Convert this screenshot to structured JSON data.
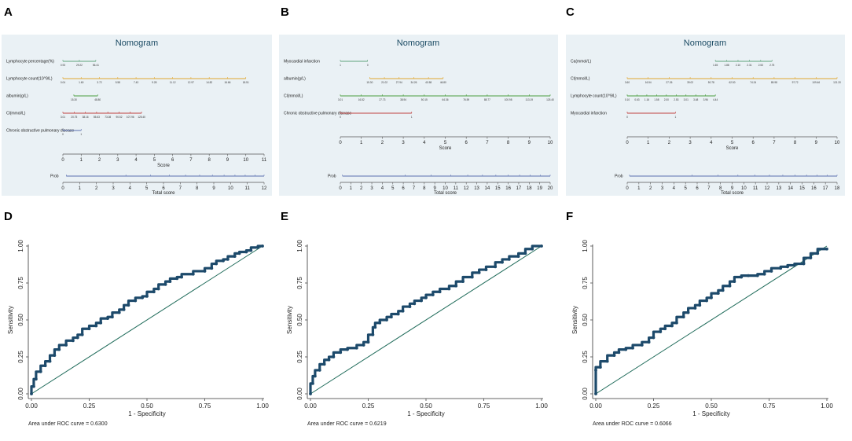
{
  "colors": {
    "nomo_bg": "#eaf1f5",
    "roc_curve": "#1d4a6b",
    "diag": "#1f6b5a",
    "row_colors": [
      "#5fa27a",
      "#e0a62f",
      "#4a9d3f",
      "#c0413f",
      "#5a6fb0"
    ]
  },
  "chart_data": [
    {
      "panel": "A",
      "type": "nomogram",
      "title": "Nomogram",
      "score_axis": {
        "label": "Score",
        "ticks": [
          0,
          1,
          2,
          3,
          4,
          5,
          6,
          7,
          8,
          9,
          10,
          11
        ]
      },
      "total_axis": {
        "label": "Total score",
        "ticks": [
          0,
          1,
          2,
          3,
          4,
          5,
          6,
          7,
          8,
          9,
          10,
          11,
          12
        ]
      },
      "prob_label": "Prob",
      "rows": [
        {
          "label": "Lymphocyte percentage(%)",
          "start": 0,
          "end": 1.8,
          "ticks": [
            "0.93",
            "29.22",
            "56.41"
          ]
        },
        {
          "label": "Lymphocyte count(10^9/L)",
          "start": 0,
          "end": 10,
          "ticks": [
            "0.04",
            "1.60",
            "3.72",
            "5.58",
            "7.43",
            "9.28",
            "11.12",
            "12.97",
            "14.82",
            "16.66",
            "18.51"
          ]
        },
        {
          "label": "albumin(g/L)",
          "start": 0.6,
          "end": 1.9,
          "ticks": [
            "15.30",
            "48.80"
          ]
        },
        {
          "label": "Cl(mmol/L)",
          "start": 0,
          "end": 4.3,
          "ticks": [
            "3.01",
            "20.75",
            "38.16",
            "55.63",
            "73.08",
            "90.52",
            "107.96",
            "125.40"
          ]
        },
        {
          "label": "Chronic obstructive pulmonary disease",
          "start": 0,
          "end": 1,
          "ticks": [
            "0",
            "1"
          ]
        }
      ]
    },
    {
      "panel": "B",
      "type": "nomogram",
      "title": "Nomogram",
      "score_axis": {
        "label": "Score",
        "ticks": [
          0,
          1,
          2,
          3,
          4,
          5,
          6,
          7,
          8,
          9,
          10
        ]
      },
      "total_axis": {
        "label": "Total score",
        "ticks": [
          0,
          1,
          2,
          3,
          4,
          5,
          6,
          7,
          8,
          9,
          10,
          11,
          12,
          13,
          14,
          15,
          16,
          17,
          18,
          19,
          20
        ]
      },
      "prob_label": "Prob",
      "rows": [
        {
          "label": "Myocardial infarction",
          "start": 0,
          "end": 1.3,
          "ticks": [
            "1",
            "0"
          ]
        },
        {
          "label": "albumin(g/L)",
          "start": 1.4,
          "end": 4.9,
          "ticks": [
            "15.30",
            "21.02",
            "27.94",
            "34.26",
            "40.58",
            "46.80"
          ]
        },
        {
          "label": "Cl(mmol/L)",
          "start": 0,
          "end": 10,
          "ticks": [
            "3.01",
            "16.52",
            "27.73",
            "38.94",
            "50.15",
            "64.36",
            "76.59",
            "88.77",
            "100.98",
            "113.19",
            "125.40"
          ]
        },
        {
          "label": "Chronic obstructive pulmonary disease",
          "start": 0,
          "end": 3.4,
          "ticks": [
            "0",
            "1"
          ]
        }
      ]
    },
    {
      "panel": "C",
      "type": "nomogram",
      "title": "Nomogram",
      "score_axis": {
        "label": "Score",
        "ticks": [
          0,
          1,
          2,
          3,
          4,
          5,
          6,
          7,
          8,
          9,
          10
        ]
      },
      "total_axis": {
        "label": "Total score",
        "ticks": [
          0,
          1,
          2,
          3,
          4,
          5,
          6,
          7,
          8,
          9,
          10,
          11,
          12,
          13,
          14,
          15,
          16,
          17,
          18
        ]
      },
      "prob_label": "Prob",
      "rows": [
        {
          "label": "Ca(mmol/L)",
          "start": 4.2,
          "end": 6.9,
          "ticks": [
            "1.65",
            "1.88",
            "2.10",
            "2.31",
            "2.53",
            "2.75"
          ]
        },
        {
          "label": "Cl(mmol/L)",
          "start": 0,
          "end": 10,
          "ticks": [
            "3.60",
            "16.54",
            "27.26",
            "39.02",
            "50.78",
            "62.50",
            "74.24",
            "85.98",
            "97.72",
            "109.46",
            "121.20"
          ]
        },
        {
          "label": "Lymphocyte count(10^9/L)",
          "start": 0,
          "end": 4.2,
          "ticks": [
            "0.10",
            "0.63",
            "1.16",
            "1.58",
            "2.00",
            "2.53",
            "3.01",
            "3.48",
            "3.96",
            "4.44"
          ]
        },
        {
          "label": "Myocardial infarction",
          "start": 0,
          "end": 2.3,
          "ticks": [
            "0",
            "1"
          ]
        }
      ]
    },
    {
      "panel": "D",
      "type": "line",
      "xlabel": "1 - Specificity",
      "ylabel": "Sensitivity",
      "xlim": [
        0,
        1
      ],
      "ylim": [
        0,
        1
      ],
      "xticks": [
        "0.00",
        "0.25",
        "0.50",
        "0.75",
        "1.00"
      ],
      "yticks": [
        "0.00",
        "0.25",
        "0.50",
        "0.75",
        "1.00"
      ],
      "auc_text": "Area under ROC curve = 0.6300",
      "series": [
        {
          "name": "ROC",
          "x": [
            0,
            0.01,
            0.02,
            0.04,
            0.06,
            0.08,
            0.1,
            0.12,
            0.15,
            0.18,
            0.2,
            0.22,
            0.25,
            0.28,
            0.3,
            0.33,
            0.35,
            0.38,
            0.4,
            0.42,
            0.45,
            0.48,
            0.5,
            0.53,
            0.55,
            0.58,
            0.6,
            0.63,
            0.65,
            0.7,
            0.75,
            0.78,
            0.8,
            0.83,
            0.85,
            0.88,
            0.9,
            0.93,
            0.95,
            0.98,
            1.0
          ],
          "y": [
            0,
            0.05,
            0.1,
            0.15,
            0.19,
            0.22,
            0.26,
            0.3,
            0.33,
            0.36,
            0.38,
            0.4,
            0.44,
            0.46,
            0.48,
            0.51,
            0.52,
            0.55,
            0.57,
            0.6,
            0.63,
            0.65,
            0.66,
            0.69,
            0.71,
            0.74,
            0.76,
            0.78,
            0.79,
            0.81,
            0.83,
            0.85,
            0.88,
            0.9,
            0.91,
            0.93,
            0.95,
            0.96,
            0.97,
            0.99,
            1.0
          ]
        },
        {
          "name": "Reference",
          "x": [
            0,
            1
          ],
          "y": [
            0,
            1
          ]
        }
      ]
    },
    {
      "panel": "E",
      "type": "line",
      "xlabel": "1 - Specificity",
      "ylabel": "Sensitivity",
      "xlim": [
        0,
        1
      ],
      "ylim": [
        0,
        1
      ],
      "xticks": [
        "0.00",
        "0.25",
        "0.50",
        "0.75",
        "1.00"
      ],
      "yticks": [
        "0.00",
        "0.25",
        "0.50",
        "0.75",
        "1.00"
      ],
      "auc_text": "Area under ROC curve = 0.6219",
      "series": [
        {
          "name": "ROC",
          "x": [
            0,
            0.01,
            0.02,
            0.04,
            0.06,
            0.08,
            0.1,
            0.13,
            0.16,
            0.2,
            0.23,
            0.25,
            0.27,
            0.28,
            0.3,
            0.33,
            0.35,
            0.38,
            0.4,
            0.43,
            0.45,
            0.48,
            0.5,
            0.53,
            0.56,
            0.6,
            0.63,
            0.66,
            0.7,
            0.73,
            0.76,
            0.8,
            0.83,
            0.86,
            0.9,
            0.93,
            0.96,
            1.0
          ],
          "y": [
            0,
            0.07,
            0.12,
            0.16,
            0.2,
            0.23,
            0.25,
            0.28,
            0.3,
            0.31,
            0.33,
            0.35,
            0.4,
            0.45,
            0.48,
            0.5,
            0.52,
            0.54,
            0.56,
            0.59,
            0.61,
            0.63,
            0.65,
            0.67,
            0.69,
            0.71,
            0.73,
            0.76,
            0.79,
            0.82,
            0.84,
            0.86,
            0.89,
            0.91,
            0.93,
            0.95,
            0.98,
            1.0
          ]
        },
        {
          "name": "Reference",
          "x": [
            0,
            1
          ],
          "y": [
            0,
            1
          ]
        }
      ]
    },
    {
      "panel": "F",
      "type": "line",
      "xlabel": "1 - Specificity",
      "ylabel": "Sensitivity",
      "xlim": [
        0,
        1
      ],
      "ylim": [
        0,
        1
      ],
      "xticks": [
        "0.00",
        "0.25",
        "0.50",
        "0.75",
        "1.00"
      ],
      "yticks": [
        "0.00",
        "0.25",
        "0.50",
        "0.75",
        "1.00"
      ],
      "auc_text": "Area under ROC curve = 0.6066",
      "series": [
        {
          "name": "ROC",
          "x": [
            0,
            0,
            0.02,
            0.05,
            0.08,
            0.1,
            0.13,
            0.16,
            0.2,
            0.23,
            0.25,
            0.28,
            0.3,
            0.33,
            0.35,
            0.38,
            0.4,
            0.43,
            0.45,
            0.48,
            0.5,
            0.53,
            0.55,
            0.58,
            0.6,
            0.63,
            0.66,
            0.7,
            0.73,
            0.76,
            0.8,
            0.83,
            0.86,
            0.9,
            0.93,
            0.96,
            1.0
          ],
          "y": [
            0,
            0.16,
            0.18,
            0.22,
            0.26,
            0.28,
            0.3,
            0.31,
            0.33,
            0.35,
            0.38,
            0.42,
            0.44,
            0.46,
            0.48,
            0.52,
            0.55,
            0.58,
            0.6,
            0.63,
            0.65,
            0.68,
            0.7,
            0.73,
            0.76,
            0.79,
            0.8,
            0.8,
            0.81,
            0.83,
            0.85,
            0.86,
            0.87,
            0.88,
            0.92,
            0.95,
            0.98
          ]
        },
        {
          "name": "Reference",
          "x": [
            0,
            1
          ],
          "y": [
            0,
            1
          ]
        }
      ]
    }
  ]
}
